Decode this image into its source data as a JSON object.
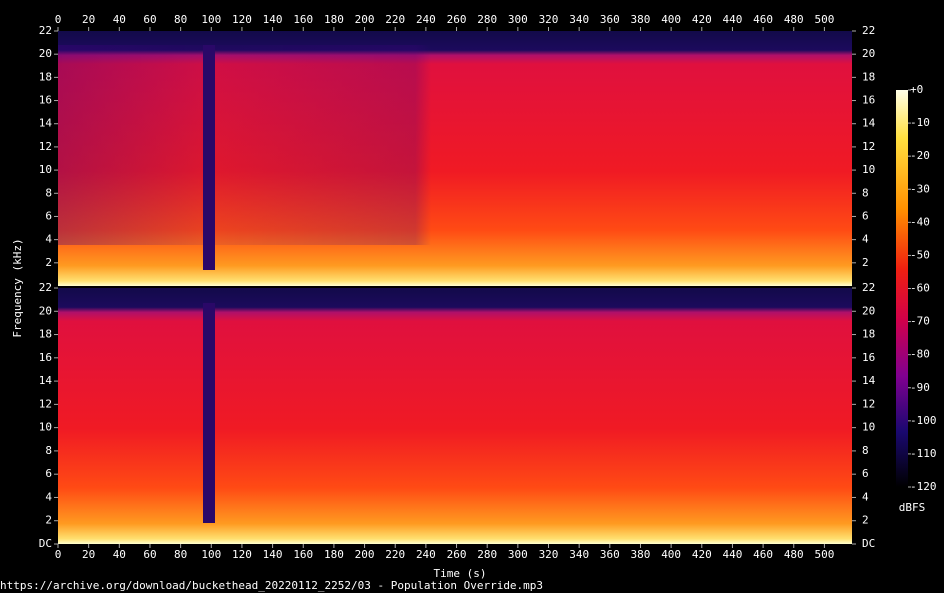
{
  "chart_data": {
    "type": "spectrogram",
    "xlabel": "Time (s)",
    "ylabel": "Frequency (kHz)",
    "xlim": [
      0,
      518
    ],
    "xticks": [
      0,
      20,
      40,
      60,
      80,
      100,
      120,
      140,
      160,
      180,
      200,
      220,
      240,
      260,
      280,
      300,
      320,
      340,
      360,
      380,
      400,
      420,
      440,
      460,
      480,
      500
    ],
    "channels": [
      {
        "ylim": [
          0,
          22
        ],
        "yticks": [
          2,
          4,
          6,
          8,
          10,
          12,
          14,
          16,
          18,
          20,
          22
        ]
      },
      {
        "ylim": [
          0,
          22
        ],
        "yticks": [
          {
            "value": 0,
            "label": "DC"
          },
          2,
          4,
          6,
          8,
          10,
          12,
          14,
          16,
          18,
          20,
          22
        ]
      }
    ],
    "clim": [
      -120,
      0
    ],
    "cticks": [
      {
        "value": 0,
        "label": "+0"
      },
      -10,
      -20,
      -30,
      -40,
      -50,
      -60,
      -70,
      -80,
      -90,
      -100,
      -110,
      -120
    ],
    "clabel": "dBFS",
    "footer": "https://archive.org/download/buckethead_20220112_2252/03 - Population Override.mp3"
  }
}
